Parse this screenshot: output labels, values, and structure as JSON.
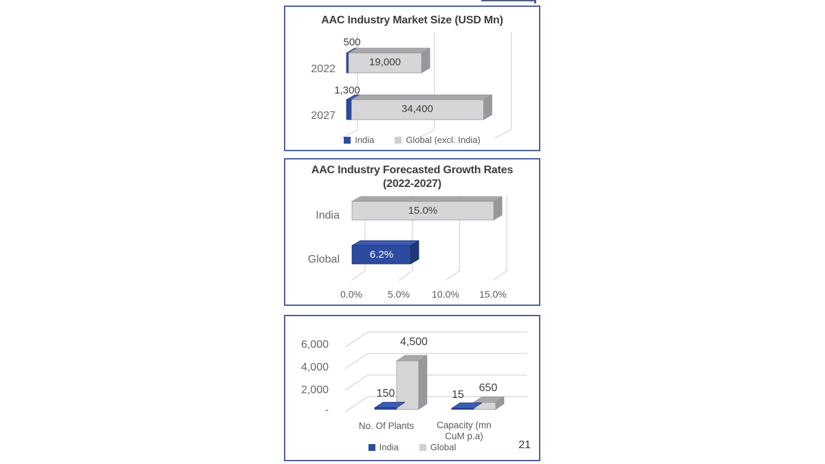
{
  "page_number": "21",
  "palette": {
    "india_blue": {
      "front": "#2c4a9e",
      "top": "#3d5cb3",
      "side": "#1d3876",
      "stroke": "#1b306a"
    },
    "global_gray": {
      "front": "#d6d6d8",
      "top": "#a8a8ac",
      "side": "#97979c",
      "stroke": "#8e8e92"
    },
    "gridline": "#d4d4d4",
    "box_border": "#4d5f9c"
  },
  "chart_data": [
    {
      "type": "bar",
      "variant": "3d-horizontal-stacked",
      "title": "AAC Industry Market Size (USD Mn)",
      "categories": [
        "2022",
        "2027"
      ],
      "series": [
        {
          "name": "India",
          "color_key": "india_blue",
          "values": [
            500,
            1300
          ],
          "labels": [
            "500",
            "1,300"
          ]
        },
        {
          "name": "Global (excl. India)",
          "color_key": "global_gray",
          "values": [
            19000,
            34400
          ],
          "labels": [
            "19,000",
            "34,400"
          ]
        }
      ],
      "legend": [
        "India",
        "Global (excl. India)"
      ],
      "xlim": [
        0,
        40000
      ],
      "gridline_values": [
        0,
        20000,
        40000
      ],
      "legend_position": "bottom"
    },
    {
      "type": "bar",
      "variant": "3d-horizontal",
      "title": "AAC Industry Forecasted Growth Rates",
      "subtitle": "(2022-2027)",
      "categories": [
        "India",
        "Global"
      ],
      "values": [
        15.0,
        6.2
      ],
      "labels": [
        "15.0%",
        "6.2%"
      ],
      "color_keys": [
        "global_gray",
        "india_blue"
      ],
      "x_ticks": [
        "0.0%",
        "5.0%",
        "10.0%",
        "15.0%"
      ],
      "x_tick_values": [
        0,
        5,
        10,
        15
      ],
      "xlim": [
        0,
        16
      ],
      "grid": "vertical"
    },
    {
      "type": "bar",
      "variant": "3d-column-clustered",
      "title": "",
      "categories": [
        "No. Of Plants",
        "Capacity (mn CuM p.a)"
      ],
      "series": [
        {
          "name": "India",
          "color_key": "india_blue",
          "values": [
            150,
            15
          ],
          "labels": [
            "150",
            "15"
          ]
        },
        {
          "name": "Global",
          "color_key": "global_gray",
          "values": [
            4500,
            650
          ],
          "labels": [
            "4,500",
            "650"
          ]
        }
      ],
      "legend": [
        "India",
        "Global"
      ],
      "y_ticks": [
        "6,000",
        "4,000",
        "2,000",
        "-"
      ],
      "y_tick_values": [
        6000,
        4000,
        2000,
        0
      ],
      "ylim": [
        0,
        6000
      ],
      "legend_position": "bottom"
    }
  ]
}
